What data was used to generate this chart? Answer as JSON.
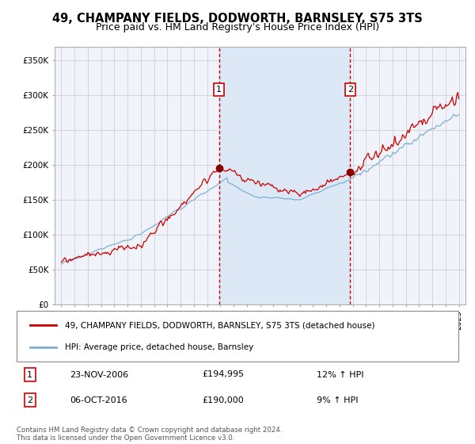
{
  "title1": "49, CHAMPANY FIELDS, DODWORTH, BARNSLEY, S75 3TS",
  "title2": "Price paid vs. HM Land Registry's House Price Index (HPI)",
  "legend1": "49, CHAMPANY FIELDS, DODWORTH, BARNSLEY, S75 3TS (detached house)",
  "legend2": "HPI: Average price, detached house, Barnsley",
  "price1": 194995,
  "price2": 190000,
  "sale1_year": 2006.896,
  "sale2_year": 2016.792,
  "ylabel_ticks": [
    "£0",
    "£50K",
    "£100K",
    "£150K",
    "£200K",
    "£250K",
    "£300K",
    "£350K"
  ],
  "ytick_vals": [
    0,
    50000,
    100000,
    150000,
    200000,
    250000,
    300000,
    350000
  ],
  "xlim": [
    1994.5,
    2025.5
  ],
  "ylim": [
    0,
    370000
  ],
  "line_color_red": "#cc0000",
  "line_color_blue": "#7eb0d4",
  "shade_color": "#dce8f5",
  "vline_color": "#cc0000",
  "dot_color": "#880000",
  "background_color": "#f0f4fa",
  "grid_color": "#c8c8c8",
  "footer": "Contains HM Land Registry data © Crown copyright and database right 2024.\nThis data is licensed under the Open Government Licence v3.0.",
  "ann1_date": "23-NOV-2006",
  "ann1_price": "£194,995",
  "ann1_hpi": "12% ↑ HPI",
  "ann2_date": "06-OCT-2016",
  "ann2_price": "£190,000",
  "ann2_hpi": "9% ↑ HPI"
}
